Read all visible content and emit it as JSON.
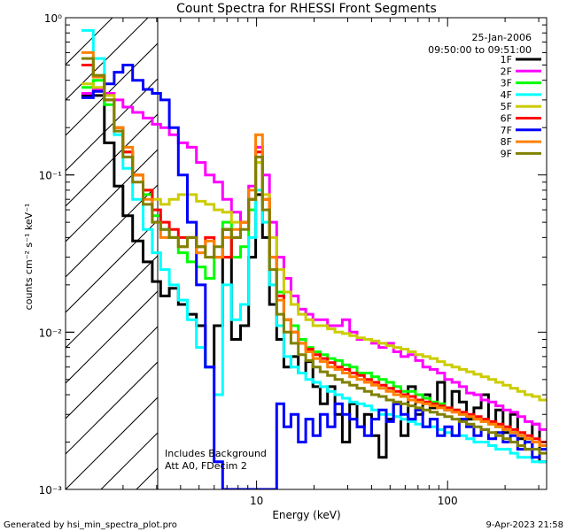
{
  "chart_data": {
    "type": "line",
    "title": "Count Spectra for RHESSI Front Segments",
    "xlabel": "Energy (keV)",
    "ylabel": "counts cm⁻² s⁻¹ keV⁻¹",
    "xscale": "log",
    "yscale": "log",
    "xlim": [
      1.0,
      330.0
    ],
    "ylim": [
      0.001,
      1.0
    ],
    "x_ticks": [
      {
        "value": 10,
        "label": "10"
      },
      {
        "value": 100,
        "label": "100"
      }
    ],
    "y_ticks": [
      {
        "value": 0.001,
        "label": "10⁻³"
      },
      {
        "value": 0.01,
        "label": "10⁻²"
      },
      {
        "value": 0.1,
        "label": "10⁻¹"
      },
      {
        "value": 1.0,
        "label": "10⁰"
      }
    ],
    "date": "25-Jan-2006",
    "time_range": "09:50:00 to 09:51:00",
    "hatched_region_kev": [
      1.0,
      3.0
    ],
    "annotations": [
      "Includes Background",
      "Att A0, FDecim 2"
    ],
    "footer_left": "Generated by hsi_min_spectra_plot.pro",
    "footer_right": "9-Apr-2023 21:58",
    "energy_kev": [
      1.3,
      1.5,
      1.7,
      1.9,
      2.1,
      2.4,
      2.7,
      3.0,
      3.3,
      3.7,
      4.1,
      4.6,
      5.1,
      5.7,
      6.3,
      7.0,
      7.8,
      8.7,
      9.5,
      10.3,
      11.2,
      12.2,
      13.3,
      14.5,
      15.8,
      17.3,
      18.9,
      20.6,
      22.5,
      24.6,
      26.9,
      29.4,
      32.1,
      35.1,
      38.3,
      41.8,
      45.7,
      49.9,
      54.5,
      59.5,
      65.0,
      71.0,
      77.5,
      84.6,
      92.4,
      100.9,
      110.2,
      120.3,
      131.4,
      143.5,
      156.7,
      171.1,
      186.8,
      204.0,
      222.7,
      243.2,
      265.6,
      290.0,
      316.7
    ],
    "series": [
      {
        "name": "1F",
        "color": "#000000",
        "values": [
          0.32,
          0.32,
          0.16,
          0.085,
          0.055,
          0.038,
          0.028,
          0.021,
          0.017,
          0.019,
          0.015,
          0.013,
          0.011,
          0.006,
          0.011,
          0.045,
          0.009,
          0.011,
          0.03,
          0.075,
          0.04,
          0.015,
          0.009,
          0.006,
          0.007,
          0.0055,
          0.0065,
          0.0045,
          0.0035,
          0.0045,
          0.003,
          0.002,
          0.0035,
          0.0025,
          0.003,
          0.0022,
          0.0016,
          0.0028,
          0.0035,
          0.0022,
          0.0045,
          0.003,
          0.004,
          0.0033,
          0.0048,
          0.0032,
          0.0042,
          0.0036,
          0.0028,
          0.0033,
          0.004,
          0.0027,
          0.0032,
          0.0023,
          0.003,
          0.0021,
          0.0018,
          0.0026,
          0.0015
        ]
      },
      {
        "name": "2F",
        "color": "#ff00ff",
        "values": [
          0.33,
          0.35,
          0.33,
          0.3,
          0.27,
          0.25,
          0.23,
          0.21,
          0.2,
          0.18,
          0.16,
          0.15,
          0.12,
          0.1,
          0.09,
          0.07,
          0.058,
          0.05,
          0.085,
          0.15,
          0.1,
          0.05,
          0.03,
          0.022,
          0.017,
          0.014,
          0.013,
          0.012,
          0.012,
          0.011,
          0.011,
          0.012,
          0.01,
          0.009,
          0.009,
          0.0085,
          0.008,
          0.0085,
          0.0075,
          0.007,
          0.0072,
          0.0066,
          0.006,
          0.0058,
          0.0055,
          0.005,
          0.0048,
          0.0045,
          0.0041,
          0.004,
          0.0037,
          0.0036,
          0.0034,
          0.0032,
          0.0031,
          0.0029,
          0.0027,
          0.0026,
          0.0024
        ]
      },
      {
        "name": "3F",
        "color": "#00ff00",
        "values": [
          0.36,
          0.4,
          0.28,
          0.2,
          0.14,
          0.1,
          0.075,
          0.055,
          0.045,
          0.04,
          0.032,
          0.028,
          0.026,
          0.022,
          0.03,
          0.05,
          0.03,
          0.035,
          0.06,
          0.12,
          0.07,
          0.03,
          0.018,
          0.012,
          0.011,
          0.009,
          0.008,
          0.0075,
          0.0072,
          0.0068,
          0.0066,
          0.0062,
          0.006,
          0.0055,
          0.0055,
          0.0052,
          0.005,
          0.0048,
          0.0045,
          0.0042,
          0.0042,
          0.004,
          0.0038,
          0.0036,
          0.0035,
          0.0033,
          0.0032,
          0.003,
          0.0029,
          0.0028,
          0.0027,
          0.0026,
          0.0025,
          0.0024,
          0.0023,
          0.0022,
          0.0021,
          0.002,
          0.0019
        ]
      },
      {
        "name": "4F",
        "color": "#00ffff",
        "values": [
          0.83,
          0.55,
          0.3,
          0.18,
          0.11,
          0.07,
          0.045,
          0.032,
          0.025,
          0.02,
          0.016,
          0.012,
          0.008,
          0.006,
          0.004,
          0.02,
          0.012,
          0.015,
          0.04,
          0.08,
          0.05,
          0.02,
          0.011,
          0.007,
          0.006,
          0.0055,
          0.005,
          0.0048,
          0.0045,
          0.0042,
          0.004,
          0.0038,
          0.0036,
          0.0035,
          0.0034,
          0.0032,
          0.003,
          0.003,
          0.0029,
          0.0028,
          0.0027,
          0.0026,
          0.0025,
          0.0025,
          0.0024,
          0.0023,
          0.0022,
          0.0022,
          0.0021,
          0.002,
          0.002,
          0.0019,
          0.0018,
          0.0018,
          0.0017,
          0.0016,
          0.0016,
          0.0015,
          0.0015
        ]
      },
      {
        "name": "5F",
        "color": "#cccc00",
        "values": [
          0.38,
          0.36,
          0.32,
          0.2,
          0.14,
          0.1,
          0.08,
          0.07,
          0.065,
          0.07,
          0.075,
          0.075,
          0.068,
          0.065,
          0.06,
          0.058,
          0.05,
          0.05,
          0.07,
          0.12,
          0.075,
          0.04,
          0.025,
          0.018,
          0.015,
          0.013,
          0.012,
          0.011,
          0.011,
          0.0105,
          0.01,
          0.0098,
          0.0095,
          0.0092,
          0.009,
          0.0088,
          0.0085,
          0.0082,
          0.008,
          0.0078,
          0.0075,
          0.0072,
          0.007,
          0.0068,
          0.0065,
          0.0062,
          0.006,
          0.0058,
          0.0056,
          0.0054,
          0.0052,
          0.005,
          0.0048,
          0.0046,
          0.0044,
          0.0042,
          0.004,
          0.0039,
          0.0037
        ]
      },
      {
        "name": "6F",
        "color": "#ff0000",
        "values": [
          0.5,
          0.42,
          0.3,
          0.2,
          0.14,
          0.1,
          0.08,
          0.06,
          0.05,
          0.045,
          0.04,
          0.04,
          0.035,
          0.04,
          0.03,
          0.03,
          0.04,
          0.05,
          0.07,
          0.14,
          0.07,
          0.03,
          0.017,
          0.012,
          0.01,
          0.0085,
          0.0078,
          0.0072,
          0.0068,
          0.0064,
          0.006,
          0.0058,
          0.0055,
          0.0053,
          0.005,
          0.0048,
          0.0046,
          0.0044,
          0.0042,
          0.004,
          0.0039,
          0.0037,
          0.0036,
          0.0035,
          0.0034,
          0.0033,
          0.0032,
          0.0031,
          0.003,
          0.0029,
          0.0028,
          0.0027,
          0.0026,
          0.0025,
          0.0024,
          0.0023,
          0.0022,
          0.0021,
          0.002
        ]
      },
      {
        "name": "7F",
        "color": "#0000ff",
        "values": [
          0.31,
          0.34,
          0.38,
          0.45,
          0.5,
          0.4,
          0.35,
          0.33,
          0.3,
          0.2,
          0.1,
          0.05,
          0.02,
          0.006,
          0.0015,
          0.001,
          0.001,
          0.001,
          0.001,
          0.001,
          0.001,
          0.001,
          0.0035,
          0.0025,
          0.003,
          0.002,
          0.0028,
          0.0022,
          0.003,
          0.0025,
          0.0035,
          0.003,
          0.0028,
          0.0025,
          0.0022,
          0.0028,
          0.0032,
          0.0027,
          0.0035,
          0.003,
          0.0028,
          0.0032,
          0.0025,
          0.0028,
          0.0022,
          0.0025,
          0.0022,
          0.0028,
          0.0025,
          0.0022,
          0.0024,
          0.0021,
          0.0023,
          0.002,
          0.0022,
          0.0018,
          0.002,
          0.0016,
          0.0018
        ]
      },
      {
        "name": "8F",
        "color": "#ff8000",
        "values": [
          0.6,
          0.42,
          0.3,
          0.2,
          0.15,
          0.1,
          0.07,
          0.05,
          0.04,
          0.04,
          0.035,
          0.04,
          0.032,
          0.038,
          0.03,
          0.04,
          0.045,
          0.05,
          0.08,
          0.18,
          0.07,
          0.03,
          0.016,
          0.012,
          0.01,
          0.0085,
          0.0075,
          0.0068,
          0.0065,
          0.006,
          0.0058,
          0.0055,
          0.0052,
          0.005,
          0.0048,
          0.0046,
          0.0044,
          0.0042,
          0.004,
          0.0039,
          0.0037,
          0.0036,
          0.0035,
          0.0034,
          0.0033,
          0.0032,
          0.0031,
          0.003,
          0.0029,
          0.0028,
          0.0027,
          0.0026,
          0.0025,
          0.0024,
          0.0023,
          0.0022,
          0.0021,
          0.002,
          0.0019
        ]
      },
      {
        "name": "9F",
        "color": "#808000",
        "values": [
          0.55,
          0.43,
          0.3,
          0.19,
          0.13,
          0.09,
          0.065,
          0.05,
          0.045,
          0.04,
          0.035,
          0.04,
          0.035,
          0.03,
          0.035,
          0.045,
          0.04,
          0.045,
          0.07,
          0.13,
          0.06,
          0.025,
          0.013,
          0.01,
          0.0085,
          0.0072,
          0.0066,
          0.006,
          0.0056,
          0.0053,
          0.005,
          0.0048,
          0.0046,
          0.0044,
          0.0042,
          0.004,
          0.0039,
          0.0037,
          0.0036,
          0.0035,
          0.0034,
          0.0033,
          0.0032,
          0.0031,
          0.003,
          0.0029,
          0.0028,
          0.0027,
          0.0026,
          0.0025,
          0.0024,
          0.0023,
          0.0022,
          0.0021,
          0.002,
          0.0019,
          0.0018,
          0.0018,
          0.0017
        ]
      }
    ]
  }
}
